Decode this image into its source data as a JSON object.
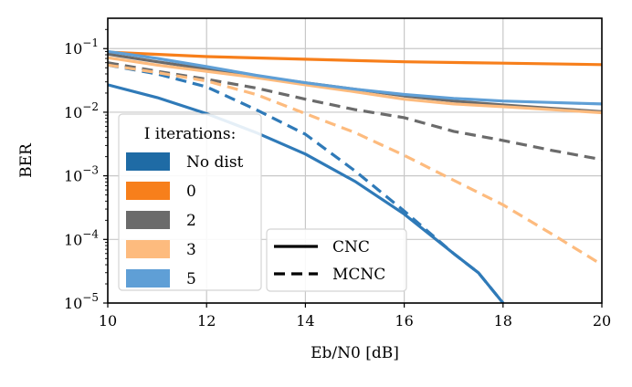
{
  "chart_data": {
    "type": "line",
    "xlabel": "Eb/N0 [dB]",
    "ylabel": "BER",
    "xlim": [
      10,
      20
    ],
    "ylim": [
      1e-05,
      0.3
    ],
    "yscale": "log",
    "grid": true,
    "x_ticks": [
      {
        "value": 10,
        "label": "10"
      },
      {
        "value": 12,
        "label": "12"
      },
      {
        "value": 14,
        "label": "14"
      },
      {
        "value": 16,
        "label": "16"
      },
      {
        "value": 18,
        "label": "18"
      },
      {
        "value": 20,
        "label": "20"
      }
    ],
    "y_ticks": [
      {
        "value": 0.1,
        "base": "10",
        "exp": "−1"
      },
      {
        "value": 0.01,
        "base": "10",
        "exp": "−2"
      },
      {
        "value": 0.001,
        "base": "10",
        "exp": "−3"
      },
      {
        "value": 0.0001,
        "base": "10",
        "exp": "−4"
      },
      {
        "value": 1e-05,
        "base": "10",
        "exp": "−5"
      }
    ],
    "legend_iterations": {
      "title": "I iterations:",
      "placement": "center-left",
      "entries": [
        {
          "label": "No dist",
          "color": "#1f6ba5"
        },
        {
          "label": "0",
          "color": "#f77f1b"
        },
        {
          "label": "2",
          "color": "#6b6b6b"
        },
        {
          "label": "3",
          "color": "#fdbb7e"
        },
        {
          "label": "5",
          "color": "#5f9fd6"
        }
      ]
    },
    "legend_methods": {
      "placement": "bottom-center",
      "entries": [
        {
          "label": "CNC",
          "style": "solid"
        },
        {
          "label": "MCNC",
          "style": "dashed"
        }
      ]
    },
    "series": [
      {
        "iterations": "No dist",
        "method": "CNC",
        "color": "#2f7ab8",
        "dashed": false,
        "x": [
          10,
          11,
          12,
          13,
          14,
          15,
          16,
          17,
          17.5,
          18
        ],
        "y": [
          0.027,
          0.017,
          0.0095,
          0.0048,
          0.0022,
          0.00082,
          0.00025,
          6e-05,
          3e-05,
          1e-05
        ]
      },
      {
        "iterations": "No dist",
        "method": "MCNC",
        "color": "#2f7ab8",
        "dashed": true,
        "x": [
          10,
          11,
          12,
          13,
          14,
          15,
          16,
          17,
          17.5,
          18
        ],
        "y": [
          0.055,
          0.04,
          0.025,
          0.011,
          0.0045,
          0.0012,
          0.00028,
          6e-05,
          3e-05,
          1e-05
        ]
      },
      {
        "iterations": "0",
        "method": "CNC",
        "color": "#f77f1b",
        "dashed": false,
        "x": [
          10,
          12,
          14,
          16,
          18,
          20
        ],
        "y": [
          0.088,
          0.075,
          0.068,
          0.062,
          0.059,
          0.056
        ]
      },
      {
        "iterations": "2",
        "method": "CNC",
        "color": "#6b6b6b",
        "dashed": false,
        "x": [
          10,
          11,
          12,
          13,
          14,
          15,
          16,
          17,
          18,
          19,
          20
        ],
        "y": [
          0.082,
          0.062,
          0.048,
          0.037,
          0.029,
          0.023,
          0.018,
          0.015,
          0.013,
          0.0115,
          0.0102
        ]
      },
      {
        "iterations": "2",
        "method": "MCNC",
        "color": "#6b6b6b",
        "dashed": true,
        "x": [
          10,
          11,
          12,
          13,
          14,
          15,
          16,
          17,
          18,
          19,
          20
        ],
        "y": [
          0.06,
          0.044,
          0.033,
          0.024,
          0.016,
          0.011,
          0.0082,
          0.005,
          0.0036,
          0.0025,
          0.0018
        ]
      },
      {
        "iterations": "3",
        "method": "CNC",
        "color": "#fdbb7e",
        "dashed": false,
        "x": [
          10,
          11,
          12,
          13,
          14,
          15,
          16,
          17,
          18,
          19,
          20
        ],
        "y": [
          0.072,
          0.055,
          0.044,
          0.035,
          0.027,
          0.021,
          0.016,
          0.0135,
          0.0122,
          0.011,
          0.0098
        ]
      },
      {
        "iterations": "3",
        "method": "MCNC",
        "color": "#fdbb7e",
        "dashed": true,
        "x": [
          10,
          11,
          12,
          13,
          14,
          15,
          16,
          17,
          18,
          19,
          20
        ],
        "y": [
          0.055,
          0.042,
          0.031,
          0.019,
          0.0095,
          0.0048,
          0.0021,
          0.00085,
          0.00035,
          0.00012,
          4e-05
        ]
      },
      {
        "iterations": "5",
        "method": "CNC",
        "color": "#5f9fd6",
        "dashed": false,
        "x": [
          10,
          11,
          12,
          13,
          14,
          15,
          16,
          17,
          18,
          19,
          20
        ],
        "y": [
          0.09,
          0.07,
          0.052,
          0.038,
          0.029,
          0.023,
          0.019,
          0.0165,
          0.015,
          0.0142,
          0.0135
        ]
      }
    ]
  }
}
